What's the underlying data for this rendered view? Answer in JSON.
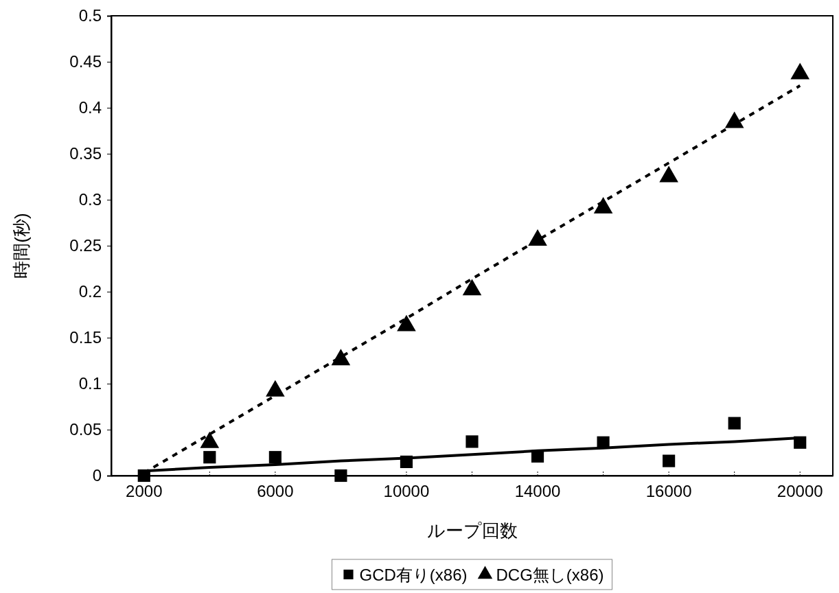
{
  "chart_data": {
    "type": "scatter",
    "xlabel": "ループ回数",
    "ylabel": "時間(秒)",
    "categories": [
      "2000",
      null,
      "6000",
      null,
      "10000",
      null,
      "14000",
      null,
      "16000",
      null,
      "20000"
    ],
    "ylim": [
      0,
      0.5
    ],
    "yticks": [
      0,
      0.05,
      0.1,
      0.15,
      0.2,
      0.25,
      0.3,
      0.35,
      0.4,
      0.45,
      0.5
    ],
    "grid": false,
    "legend": "bottom",
    "series": [
      {
        "name": "GCD有り(x86)",
        "color": "#000000",
        "marker": "square",
        "values": [
          0,
          0.02,
          0.02,
          0,
          0.015,
          0.037,
          0.021,
          0.036,
          0.016,
          0.057,
          0.036
        ]
      },
      {
        "name": "DCG無し(x86)",
        "color": "#000000",
        "marker": "triangle",
        "values": [
          null,
          0.036,
          0.092,
          0.126,
          0.163,
          0.202,
          0.256,
          0.291,
          0.325,
          0.384,
          0.437
        ]
      },
      {
        "type": "line",
        "color": "#000000",
        "line_style": "solid",
        "marker": "none",
        "values": [
          0.005,
          0.009,
          0.012,
          0.016,
          0.019,
          0.023,
          0.027,
          0.03,
          0.034,
          0.037,
          0.041
        ]
      },
      {
        "type": "line",
        "color": "#000000",
        "line_style": "dotted",
        "marker": "none",
        "values": [
          0.003,
          0.045,
          0.087,
          0.129,
          0.171,
          0.214,
          0.256,
          0.298,
          0.34,
          0.382,
          0.424
        ]
      }
    ]
  }
}
